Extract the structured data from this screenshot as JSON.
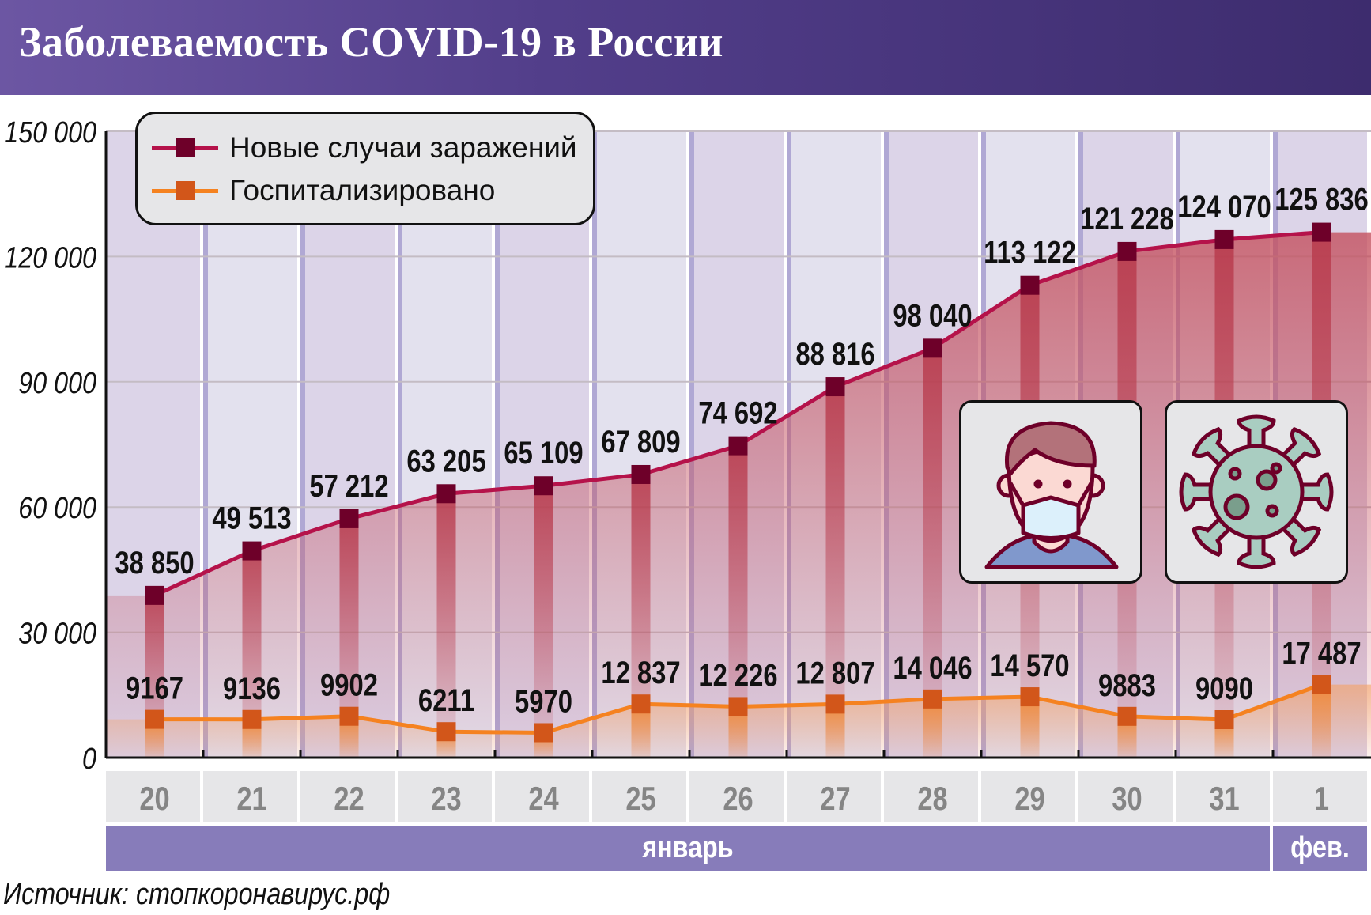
{
  "title": "Заболеваемость COVID-19 в России",
  "legend": [
    {
      "label": "Новые случаи заражений",
      "color": "#b5124a",
      "marker": "#6e0029"
    },
    {
      "label": "Госпитализировано",
      "color": "#f58220",
      "marker": "#d2561a"
    }
  ],
  "source": "Источник: стопкоронавирус.рф",
  "icons": [
    "masked-person-icon",
    "virus-icon"
  ],
  "chart_data": {
    "type": "line",
    "title": "Заболеваемость COVID-19 в России",
    "categories": [
      "20",
      "21",
      "22",
      "23",
      "24",
      "25",
      "26",
      "27",
      "28",
      "29",
      "30",
      "31",
      "1"
    ],
    "months": [
      {
        "label": "январь",
        "span": 12
      },
      {
        "label": "фев.",
        "span": 1
      }
    ],
    "ylim": [
      0,
      150000
    ],
    "yticks": [
      0,
      30000,
      60000,
      90000,
      120000,
      150000
    ],
    "ytick_labels": [
      "0",
      "30 000",
      "60 000",
      "90 000",
      "120 000",
      "150 000"
    ],
    "grid": true,
    "legend_position": "top-left",
    "series": [
      {
        "name": "Новые случаи заражений",
        "values": [
          38850,
          49513,
          57212,
          63205,
          65109,
          67809,
          74692,
          88816,
          98040,
          113122,
          121228,
          124070,
          125836
        ],
        "labels": [
          "38 850",
          "49 513",
          "57 212",
          "63 205",
          "65 109",
          "67 809",
          "74 692",
          "88 816",
          "98 040",
          "113 122",
          "121 228",
          "124 070",
          "125 836"
        ]
      },
      {
        "name": "Госпитализировано",
        "values": [
          9167,
          9136,
          9902,
          6211,
          5970,
          12837,
          12226,
          12807,
          14046,
          14570,
          9883,
          9090,
          17487
        ],
        "labels": [
          "9167",
          "9136",
          "9902",
          "6211",
          "5970",
          "12 837",
          "12 226",
          "12 807",
          "14 046",
          "14 570",
          "9883",
          "9090",
          "17 487"
        ]
      }
    ]
  }
}
